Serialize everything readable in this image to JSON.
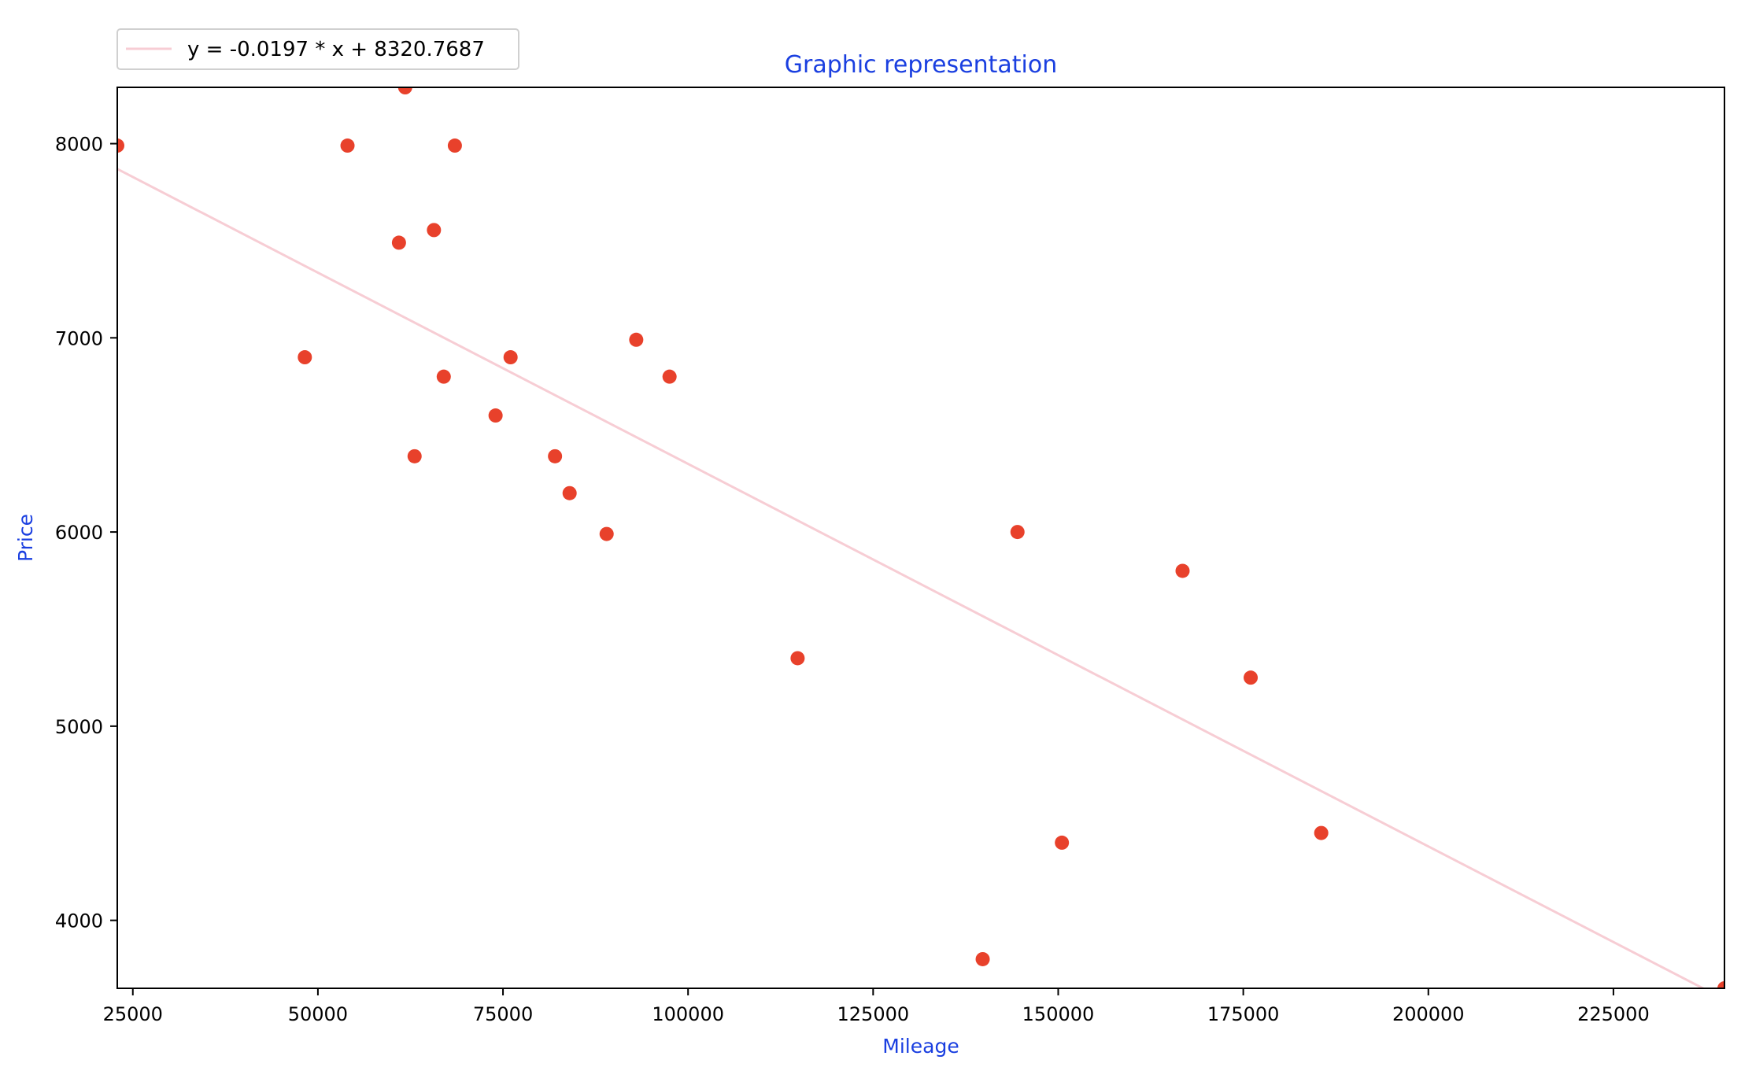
{
  "chart_data": {
    "type": "scatter",
    "title": "Graphic representation",
    "xlabel": "Mileage",
    "ylabel": "Price",
    "xlim": [
      22899,
      240000
    ],
    "ylim": [
      3650,
      8290
    ],
    "xticks": [
      25000,
      50000,
      75000,
      100000,
      125000,
      150000,
      175000,
      200000,
      225000
    ],
    "yticks": [
      4000,
      5000,
      6000,
      7000,
      8000
    ],
    "grid": false,
    "legend_position": "top-left",
    "colors": {
      "points": "#e8412b",
      "fit_line": "#f7cdd4",
      "title": "#1a3fe0",
      "axis_labels": "#1a3fe0",
      "axes": "#000000"
    },
    "series": [
      {
        "type": "scatter",
        "points": [
          [
            240000,
            3650
          ],
          [
            139800,
            3800
          ],
          [
            150500,
            4400
          ],
          [
            185530,
            4450
          ],
          [
            176000,
            5250
          ],
          [
            114800,
            5350
          ],
          [
            166800,
            5800
          ],
          [
            89000,
            5990
          ],
          [
            144500,
            6000
          ],
          [
            84000,
            6200
          ],
          [
            82029,
            6390
          ],
          [
            63060,
            6390
          ],
          [
            74000,
            6600
          ],
          [
            97500,
            6800
          ],
          [
            67000,
            6800
          ],
          [
            76025,
            6900
          ],
          [
            48235,
            6900
          ],
          [
            93000,
            6990
          ],
          [
            60949,
            7490
          ],
          [
            65674,
            7555
          ],
          [
            54000,
            7990
          ],
          [
            68500,
            7990
          ],
          [
            22899,
            7990
          ],
          [
            61789,
            8290
          ]
        ]
      },
      {
        "name": "y = -0.0197 * x + 8320.7687",
        "type": "line",
        "slope": -0.0197,
        "intercept": 8320.7687
      }
    ]
  }
}
